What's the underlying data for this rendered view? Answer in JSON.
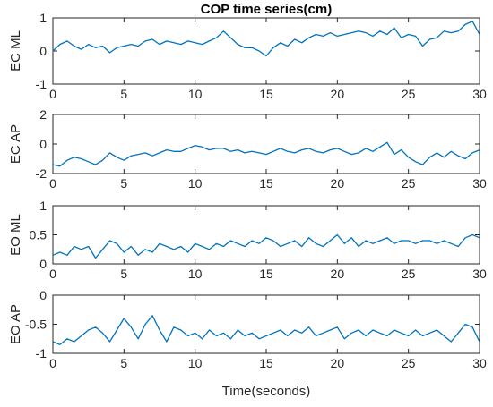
{
  "figure": {
    "title": "COP time series(cm)",
    "xlabel": "Time(seconds)"
  },
  "chart_data": [
    {
      "type": "line",
      "ylabel": "EC ML",
      "xlim": [
        0,
        30
      ],
      "ylim": [
        -1,
        1
      ],
      "xticks": [
        0,
        5,
        10,
        15,
        20,
        25,
        30
      ],
      "yticks": [
        -1,
        0,
        1
      ],
      "grid": false,
      "color": "#0072BD",
      "x": [
        0,
        0.5,
        1,
        1.5,
        2,
        2.5,
        3,
        3.5,
        4,
        4.5,
        5,
        5.5,
        6,
        6.5,
        7,
        7.5,
        8,
        8.5,
        9,
        9.5,
        10,
        10.5,
        11,
        11.5,
        12,
        12.5,
        13,
        13.5,
        14,
        14.5,
        15,
        15.5,
        16,
        16.5,
        17,
        17.5,
        18,
        18.5,
        19,
        19.5,
        20,
        20.5,
        21,
        21.5,
        22,
        22.5,
        23,
        23.5,
        24,
        24.5,
        25,
        25.5,
        26,
        26.5,
        27,
        27.5,
        28,
        28.5,
        29,
        29.5,
        30
      ],
      "y": [
        0.0,
        0.2,
        0.3,
        0.15,
        0.05,
        0.2,
        0.1,
        0.15,
        -0.05,
        0.1,
        0.15,
        0.2,
        0.15,
        0.3,
        0.35,
        0.2,
        0.3,
        0.25,
        0.2,
        0.3,
        0.25,
        0.2,
        0.3,
        0.4,
        0.6,
        0.4,
        0.2,
        0.1,
        0.1,
        0.0,
        -0.15,
        0.1,
        0.25,
        0.15,
        0.35,
        0.25,
        0.4,
        0.5,
        0.45,
        0.55,
        0.45,
        0.5,
        0.55,
        0.6,
        0.55,
        0.45,
        0.6,
        0.5,
        0.7,
        0.4,
        0.5,
        0.45,
        0.15,
        0.35,
        0.4,
        0.6,
        0.55,
        0.6,
        0.8,
        0.9,
        0.5
      ]
    },
    {
      "type": "line",
      "ylabel": "EC AP",
      "xlim": [
        0,
        30
      ],
      "ylim": [
        -2,
        2
      ],
      "xticks": [
        0,
        5,
        10,
        15,
        20,
        25,
        30
      ],
      "yticks": [
        -2,
        0,
        2
      ],
      "grid": false,
      "color": "#0072BD",
      "x": [
        0,
        0.5,
        1,
        1.5,
        2,
        2.5,
        3,
        3.5,
        4,
        4.5,
        5,
        5.5,
        6,
        6.5,
        7,
        7.5,
        8,
        8.5,
        9,
        9.5,
        10,
        10.5,
        11,
        11.5,
        12,
        12.5,
        13,
        13.5,
        14,
        14.5,
        15,
        15.5,
        16,
        16.5,
        17,
        17.5,
        18,
        18.5,
        19,
        19.5,
        20,
        20.5,
        21,
        21.5,
        22,
        22.5,
        23,
        23.5,
        24,
        24.5,
        25,
        25.5,
        26,
        26.5,
        27,
        27.5,
        28,
        28.5,
        29,
        29.5,
        30
      ],
      "y": [
        -1.4,
        -1.5,
        -1.1,
        -0.9,
        -1.0,
        -1.2,
        -1.4,
        -1.1,
        -0.6,
        -0.9,
        -1.1,
        -0.8,
        -0.7,
        -0.6,
        -0.8,
        -0.6,
        -0.4,
        -0.5,
        -0.5,
        -0.3,
        -0.1,
        -0.2,
        -0.4,
        -0.3,
        -0.3,
        -0.5,
        -0.4,
        -0.6,
        -0.5,
        -0.6,
        -0.7,
        -0.5,
        -0.3,
        -0.5,
        -0.6,
        -0.4,
        -0.3,
        -0.5,
        -0.6,
        -0.4,
        -0.3,
        -0.5,
        -0.7,
        -0.6,
        -0.3,
        -0.5,
        -0.2,
        0.1,
        -0.7,
        -0.4,
        -0.9,
        -1.2,
        -1.4,
        -0.9,
        -0.6,
        -0.9,
        -0.5,
        -0.8,
        -1.0,
        -0.6,
        -0.4
      ]
    },
    {
      "type": "line",
      "ylabel": "EO ML",
      "xlim": [
        0,
        30
      ],
      "ylim": [
        0,
        1
      ],
      "xticks": [
        0,
        5,
        10,
        15,
        20,
        25,
        30
      ],
      "yticks": [
        0,
        0.5,
        1
      ],
      "grid": false,
      "color": "#0072BD",
      "x": [
        0,
        0.5,
        1,
        1.5,
        2,
        2.5,
        3,
        3.5,
        4,
        4.5,
        5,
        5.5,
        6,
        6.5,
        7,
        7.5,
        8,
        8.5,
        9,
        9.5,
        10,
        10.5,
        11,
        11.5,
        12,
        12.5,
        13,
        13.5,
        14,
        14.5,
        15,
        15.5,
        16,
        16.5,
        17,
        17.5,
        18,
        18.5,
        19,
        19.5,
        20,
        20.5,
        21,
        21.5,
        22,
        22.5,
        23,
        23.5,
        24,
        24.5,
        25,
        25.5,
        26,
        26.5,
        27,
        27.5,
        28,
        28.5,
        29,
        29.5,
        30
      ],
      "y": [
        0.15,
        0.2,
        0.15,
        0.3,
        0.25,
        0.3,
        0.1,
        0.25,
        0.4,
        0.35,
        0.2,
        0.3,
        0.15,
        0.25,
        0.2,
        0.35,
        0.3,
        0.25,
        0.3,
        0.2,
        0.35,
        0.3,
        0.25,
        0.35,
        0.3,
        0.4,
        0.35,
        0.3,
        0.4,
        0.35,
        0.45,
        0.4,
        0.3,
        0.35,
        0.4,
        0.3,
        0.45,
        0.35,
        0.3,
        0.4,
        0.5,
        0.35,
        0.45,
        0.3,
        0.4,
        0.35,
        0.4,
        0.45,
        0.35,
        0.4,
        0.4,
        0.35,
        0.4,
        0.4,
        0.35,
        0.4,
        0.35,
        0.3,
        0.45,
        0.5,
        0.45
      ]
    },
    {
      "type": "line",
      "ylabel": "EO AP",
      "xlim": [
        0,
        30
      ],
      "ylim": [
        -1,
        0
      ],
      "xticks": [
        0,
        5,
        10,
        15,
        20,
        25,
        30
      ],
      "yticks": [
        -1,
        -0.5,
        0
      ],
      "grid": false,
      "color": "#0072BD",
      "x": [
        0,
        0.5,
        1,
        1.5,
        2,
        2.5,
        3,
        3.5,
        4,
        4.5,
        5,
        5.5,
        6,
        6.5,
        7,
        7.5,
        8,
        8.5,
        9,
        9.5,
        10,
        10.5,
        11,
        11.5,
        12,
        12.5,
        13,
        13.5,
        14,
        14.5,
        15,
        15.5,
        16,
        16.5,
        17,
        17.5,
        18,
        18.5,
        19,
        19.5,
        20,
        20.5,
        21,
        21.5,
        22,
        22.5,
        23,
        23.5,
        24,
        24.5,
        25,
        25.5,
        26,
        26.5,
        27,
        27.5,
        28,
        28.5,
        29,
        29.5,
        30
      ],
      "y": [
        -0.8,
        -0.85,
        -0.75,
        -0.8,
        -0.7,
        -0.6,
        -0.55,
        -0.65,
        -0.8,
        -0.6,
        -0.4,
        -0.55,
        -0.75,
        -0.5,
        -0.35,
        -0.6,
        -0.8,
        -0.55,
        -0.6,
        -0.7,
        -0.65,
        -0.75,
        -0.6,
        -0.7,
        -0.65,
        -0.75,
        -0.6,
        -0.7,
        -0.65,
        -0.75,
        -0.7,
        -0.65,
        -0.6,
        -0.7,
        -0.6,
        -0.65,
        -0.55,
        -0.7,
        -0.65,
        -0.6,
        -0.55,
        -0.75,
        -0.65,
        -0.6,
        -0.7,
        -0.6,
        -0.65,
        -0.7,
        -0.6,
        -0.65,
        -0.7,
        -0.6,
        -0.7,
        -0.65,
        -0.6,
        -0.7,
        -0.8,
        -0.65,
        -0.5,
        -0.55,
        -0.8
      ]
    }
  ]
}
